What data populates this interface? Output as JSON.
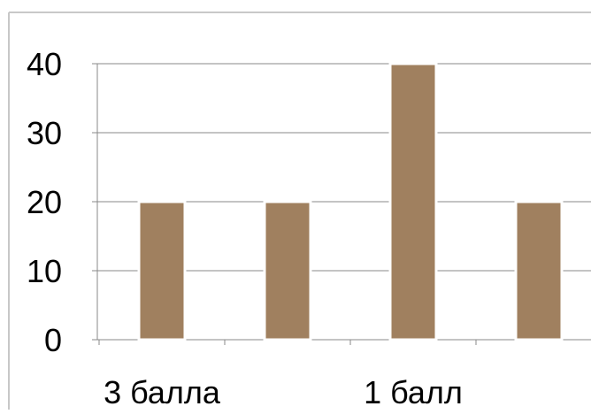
{
  "chart_data": {
    "type": "bar",
    "categories": [
      "3 балла",
      "",
      "1 балл",
      ""
    ],
    "values": [
      20,
      20,
      40,
      20
    ],
    "ylim": [
      0,
      40
    ],
    "yticks": [
      0,
      10,
      20,
      30,
      40
    ],
    "grid": true,
    "colors": {
      "bar": "#a0805f",
      "bar_outline": "#ffffff",
      "grid": "#888888",
      "frame": "#c8c8c8",
      "axis": "#888888"
    }
  }
}
